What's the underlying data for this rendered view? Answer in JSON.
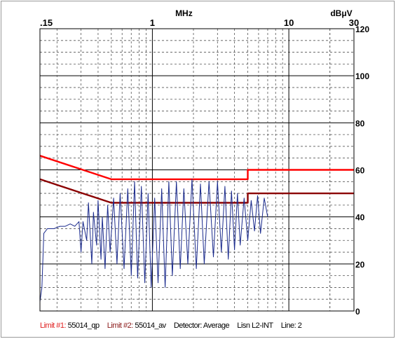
{
  "chart_data": {
    "type": "line",
    "x_scale": "log",
    "y_scale": "linear",
    "xlim": [
      0.15,
      30
    ],
    "ylim": [
      0,
      120
    ],
    "xlabel": "MHz",
    "ylabel": "dBμV",
    "x_ticks": [
      0.15,
      1,
      10,
      30
    ],
    "x_tick_labels": [
      ".15",
      "1",
      "10",
      "30"
    ],
    "y_ticks": [
      0,
      20,
      40,
      60,
      80,
      100,
      120
    ],
    "y_tick_labels": [
      "0",
      "20",
      "40",
      "60",
      "80",
      "100",
      "120"
    ],
    "grid": true,
    "series": [
      {
        "name": "55014_qp",
        "color": "#ff0000",
        "x": [
          0.15,
          0.5,
          5,
          5,
          30
        ],
        "y": [
          66,
          56,
          56,
          60,
          60
        ]
      },
      {
        "name": "55014_av",
        "color": "#8b0000",
        "x": [
          0.15,
          0.5,
          5,
          5,
          30
        ],
        "y": [
          56,
          46,
          46,
          50,
          50
        ]
      },
      {
        "name": "Average",
        "color": "#1a2a8c",
        "x": [
          0.15,
          0.155,
          0.16,
          0.17,
          0.19,
          0.21,
          0.23,
          0.25,
          0.27,
          0.29,
          0.3,
          0.31,
          0.33,
          0.34,
          0.36,
          0.37,
          0.39,
          0.4,
          0.42,
          0.43,
          0.45,
          0.47,
          0.49,
          0.52,
          0.55,
          0.58,
          0.62,
          0.66,
          0.7,
          0.74,
          0.78,
          0.83,
          0.88,
          0.93,
          0.98,
          1.04,
          1.1,
          1.17,
          1.24,
          1.32,
          1.4,
          1.5,
          1.6,
          1.7,
          1.82,
          1.95,
          2.1,
          2.25,
          2.4,
          2.6,
          2.8,
          3.0,
          3.2,
          3.4,
          3.6,
          3.8,
          4.0,
          4.2,
          4.4,
          4.7,
          5.0,
          5.3,
          5.6,
          5.9,
          6.2,
          6.6,
          7.0
        ],
        "y": [
          4,
          10,
          33,
          35,
          35,
          36,
          36,
          37,
          36,
          38,
          25,
          38,
          30,
          46,
          20,
          42,
          28,
          47,
          22,
          40,
          18,
          45,
          25,
          48,
          20,
          50,
          18,
          52,
          15,
          55,
          14,
          53,
          12,
          50,
          10,
          48,
          12,
          52,
          10,
          55,
          15,
          55,
          18,
          52,
          20,
          56,
          18,
          54,
          20,
          55,
          23,
          55,
          25,
          53,
          22,
          51,
          26,
          50,
          28,
          48,
          30,
          47,
          34,
          49,
          33,
          48,
          40
        ]
      }
    ]
  },
  "footer": {
    "limit1_key": "Limit #1:",
    "limit1_value": "55014_qp",
    "limit2_key": "Limit #2:",
    "limit2_value": "55014_av",
    "detector": "Detector: Average",
    "lisn": "Lisn L2-INT",
    "line": "Line: 2"
  }
}
